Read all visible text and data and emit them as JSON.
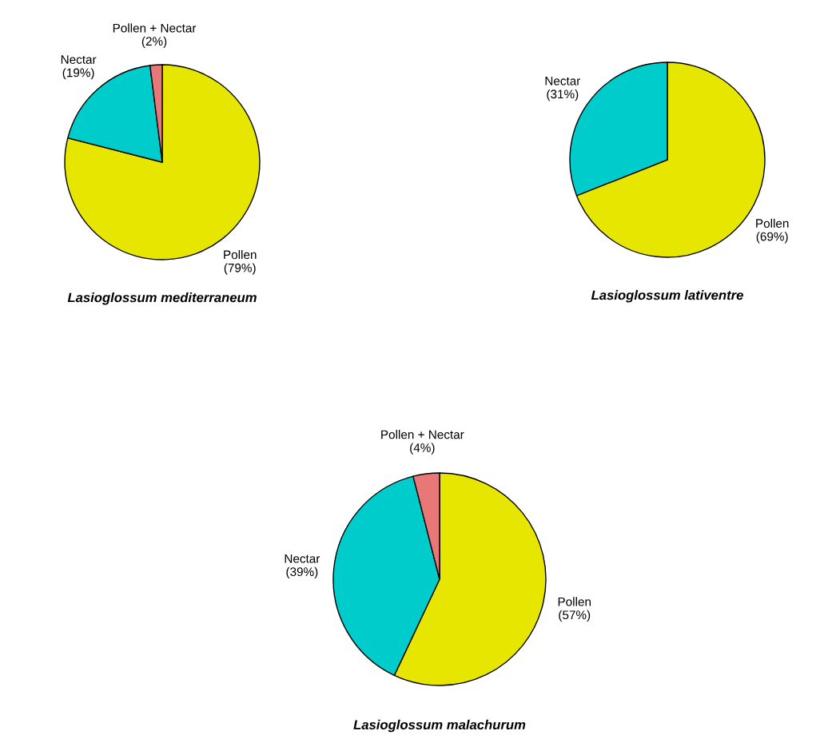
{
  "chart_data": [
    {
      "type": "pie",
      "title": "Lasioglossum mediterraneum",
      "categories": [
        "Pollen",
        "Nectar",
        "Pollen + Nectar"
      ],
      "values": [
        79,
        19,
        2
      ],
      "value_labels": [
        "(79%)",
        "(19%)",
        "(2%)"
      ],
      "colors": [
        "#e6e600",
        "#00cccc",
        "#e87878"
      ]
    },
    {
      "type": "pie",
      "title": "Lasioglossum lativentre",
      "categories": [
        "Pollen",
        "Nectar"
      ],
      "values": [
        69,
        31
      ],
      "value_labels": [
        "(69%)",
        "(31%)"
      ],
      "colors": [
        "#e6e600",
        "#00cccc"
      ]
    },
    {
      "type": "pie",
      "title": "Lasioglossum malachurum",
      "categories": [
        "Pollen",
        "Nectar",
        "Pollen + Nectar"
      ],
      "values": [
        57,
        39,
        4
      ],
      "value_labels": [
        "(57%)",
        "(39%)",
        "(4%)"
      ],
      "colors": [
        "#e6e600",
        "#00cccc",
        "#e87878"
      ]
    }
  ]
}
